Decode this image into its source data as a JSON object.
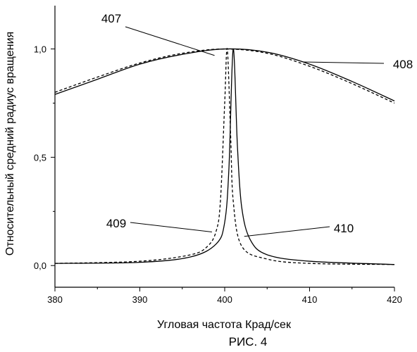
{
  "chart_data": {
    "type": "line",
    "title": "",
    "xlabel": "Угловая частота Крад/сек",
    "ylabel": "Относительный средний радиус вращения",
    "xlim": [
      380,
      420
    ],
    "ylim": [
      -0.1,
      1.2
    ],
    "x_ticks": [
      "380",
      "390",
      "400",
      "410",
      "420"
    ],
    "y_ticks": [
      "0,0",
      "0,5",
      "1,0"
    ],
    "grid": false,
    "caption": "РИС. 4",
    "series": [
      {
        "label": "407",
        "style": "solid",
        "color": "#000000",
        "x": [
          380,
          385,
          390,
          395,
          400,
          405,
          410,
          415,
          420
        ],
        "y": [
          0.79,
          0.86,
          0.93,
          0.975,
          1.0,
          0.985,
          0.93,
          0.85,
          0.76
        ]
      },
      {
        "label": "408",
        "style": "dashed",
        "color": "#000000",
        "x": [
          380,
          385,
          390,
          395,
          400,
          405,
          410,
          415,
          420
        ],
        "y": [
          0.8,
          0.87,
          0.935,
          0.98,
          1.0,
          0.98,
          0.92,
          0.84,
          0.75
        ]
      },
      {
        "label": "409",
        "style": "dashed",
        "color": "#000000",
        "x": [
          380,
          390,
          396,
          398,
          399,
          399.5,
          400,
          400.3,
          400.7,
          401,
          402,
          405,
          410,
          420
        ],
        "y": [
          0.01,
          0.02,
          0.05,
          0.09,
          0.16,
          0.3,
          0.75,
          1.0,
          0.6,
          0.3,
          0.09,
          0.03,
          0.01,
          0.005
        ]
      },
      {
        "label": "410",
        "style": "solid",
        "color": "#000000",
        "x": [
          380,
          390,
          396,
          399,
          400,
          400.5,
          401,
          401.5,
          402,
          403,
          405,
          410,
          420
        ],
        "y": [
          0.01,
          0.015,
          0.04,
          0.1,
          0.2,
          0.45,
          1.0,
          0.55,
          0.27,
          0.12,
          0.05,
          0.02,
          0.005
        ]
      }
    ],
    "callouts": [
      {
        "series": "407",
        "text": "407",
        "x": 398.8,
        "y": 0.97
      },
      {
        "series": "408",
        "text": "408",
        "x": 409.2,
        "y": 0.94
      },
      {
        "series": "409",
        "text": "409",
        "x": 398.5,
        "y": 0.155
      },
      {
        "series": "410",
        "text": "410",
        "x": 402.3,
        "y": 0.135
      }
    ]
  }
}
